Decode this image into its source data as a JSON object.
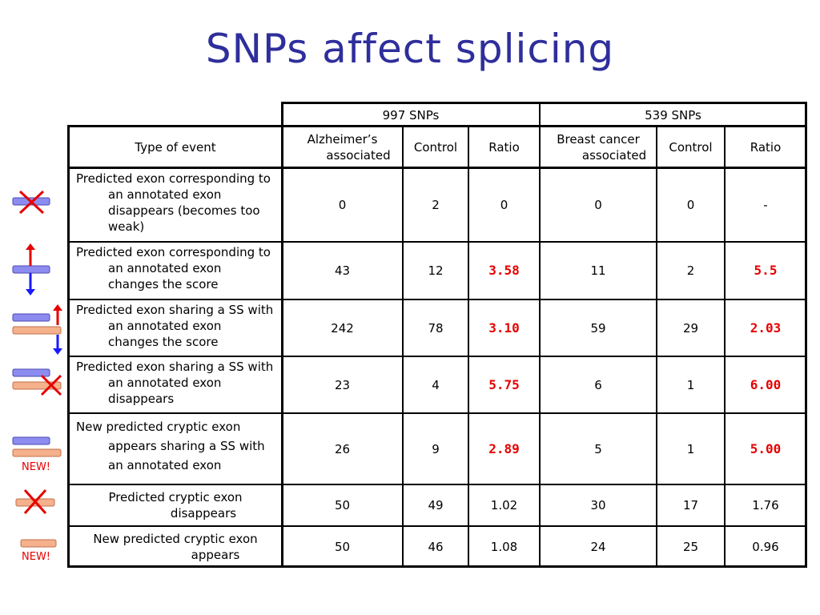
{
  "title": "SNPs affect splicing",
  "groups": {
    "left": "997 SNPs",
    "right": "539 SNPs"
  },
  "headers": {
    "type": "Type of event",
    "alz": "Alzheimer’s associated",
    "control1": "Control",
    "ratio1": "Ratio",
    "breast": "Breast cancer associated",
    "control2": "Control",
    "ratio2": "Ratio"
  },
  "rows": [
    {
      "event": "Predicted exon corresponding to an annotated exon disappears (becomes too weak)",
      "alz": "0",
      "ctrl1": "2",
      "ratio1": "0",
      "breast": "0",
      "ctrl2": "0",
      "ratio2": "-"
    },
    {
      "event": "Predicted exon corresponding to an annotated exon changes the score",
      "alz": "43",
      "ctrl1": "12",
      "ratio1": "3.58",
      "breast": "11",
      "ctrl2": "2",
      "ratio2": "5.5"
    },
    {
      "event": "Predicted exon sharing a SS with an annotated exon changes the score",
      "alz": "242",
      "ctrl1": "78",
      "ratio1": "3.10",
      "breast": "59",
      "ctrl2": "29",
      "ratio2": "2.03"
    },
    {
      "event": "Predicted exon sharing a SS with an annotated exon disappears",
      "alz": "23",
      "ctrl1": "4",
      "ratio1": "5.75",
      "breast": "6",
      "ctrl2": "1",
      "ratio2": "6.00"
    },
    {
      "event": "New predicted cryptic exon appears sharing a SS with an annotated exon",
      "alz": "26",
      "ctrl1": "9",
      "ratio1": "2.89",
      "breast": "5",
      "ctrl2": "1",
      "ratio2": "5.00"
    },
    {
      "event": "Predicted cryptic exon disappears",
      "alz": "50",
      "ctrl1": "49",
      "ratio1": "1.02",
      "breast": "30",
      "ctrl2": "17",
      "ratio2": "1.76"
    },
    {
      "event": "New predicted cryptic exon appears",
      "alz": "50",
      "ctrl1": "46",
      "ratio1": "1.08",
      "breast": "24",
      "ctrl2": "25",
      "ratio2": "0.96"
    }
  ],
  "icons": {
    "new_label_1": "NEW!",
    "new_label_2": "NEW!"
  },
  "colors": {
    "title": "#2e2e9c",
    "highlight_ratio": "#e60000",
    "annotated_exon": "#8c8cf0",
    "cryptic_exon": "#f5b08c",
    "cross": "#e60000",
    "arrow_up": "#e60000",
    "arrow_down": "#1a1aff"
  }
}
